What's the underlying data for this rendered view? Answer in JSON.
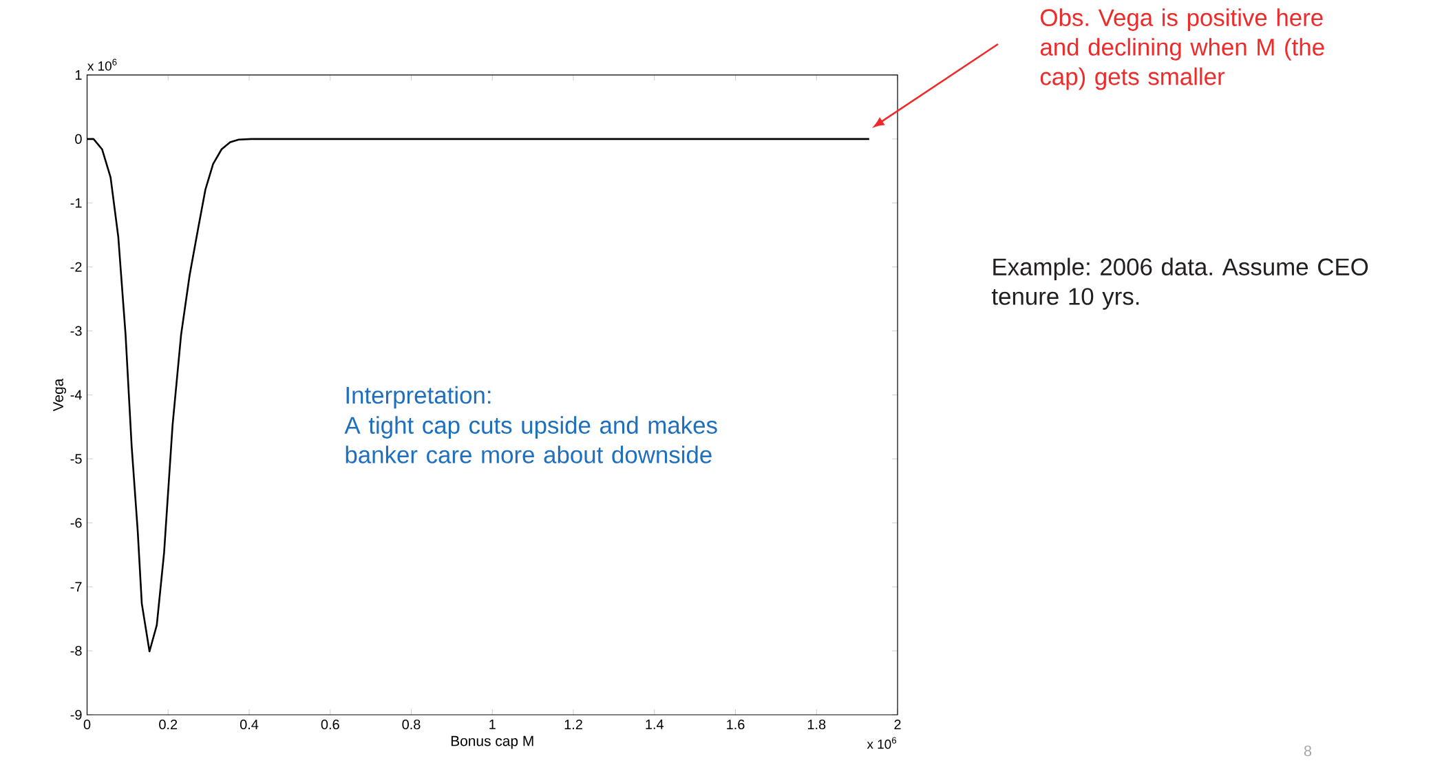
{
  "chart_data": {
    "type": "line",
    "xlabel": "Bonus cap M",
    "ylabel": "Vega",
    "x": [
      0,
      0.016,
      0.037,
      0.058,
      0.077,
      0.095,
      0.11,
      0.125,
      0.135,
      0.154,
      0.172,
      0.19,
      0.211,
      0.232,
      0.253,
      0.274,
      0.292,
      0.311,
      0.332,
      0.353,
      0.374,
      0.405,
      0.7,
      1.0,
      1.3,
      1.6,
      1.93
    ],
    "series": [
      {
        "color": "#000000",
        "values": [
          0,
          0,
          -0.16,
          -0.6,
          -1.53,
          -3.06,
          -4.8,
          -6.13,
          -7.26,
          -8.01,
          -7.6,
          -6.47,
          -4.47,
          -3.06,
          -2.13,
          -1.4,
          -0.79,
          -0.39,
          -0.16,
          -0.05,
          -0.01,
          0,
          0,
          0,
          0,
          0,
          0
        ]
      }
    ],
    "xlim": [
      0,
      2
    ],
    "ylim": [
      -9,
      1
    ],
    "xticks": [
      0,
      0.2,
      0.4,
      0.6,
      0.8,
      1,
      1.2,
      1.4,
      1.6,
      1.8,
      2
    ],
    "yticks": [
      -9,
      -8,
      -7,
      -6,
      -5,
      -4,
      -3,
      -2,
      -1,
      0,
      1
    ],
    "grid": false,
    "marker": "none",
    "line_style": "solid",
    "annotations": [
      "x 10$^{6}$",
      "x 10$^{6}$",
      "Obs. Vega is positive here and declining when M (the cap) gets smaller",
      "Interpretation:",
      "A tight cap cuts upside and makes banker care more about downside",
      "Example: 2006 data. Assume CEO tenure 10 yrs.",
      "8"
    ]
  }
}
